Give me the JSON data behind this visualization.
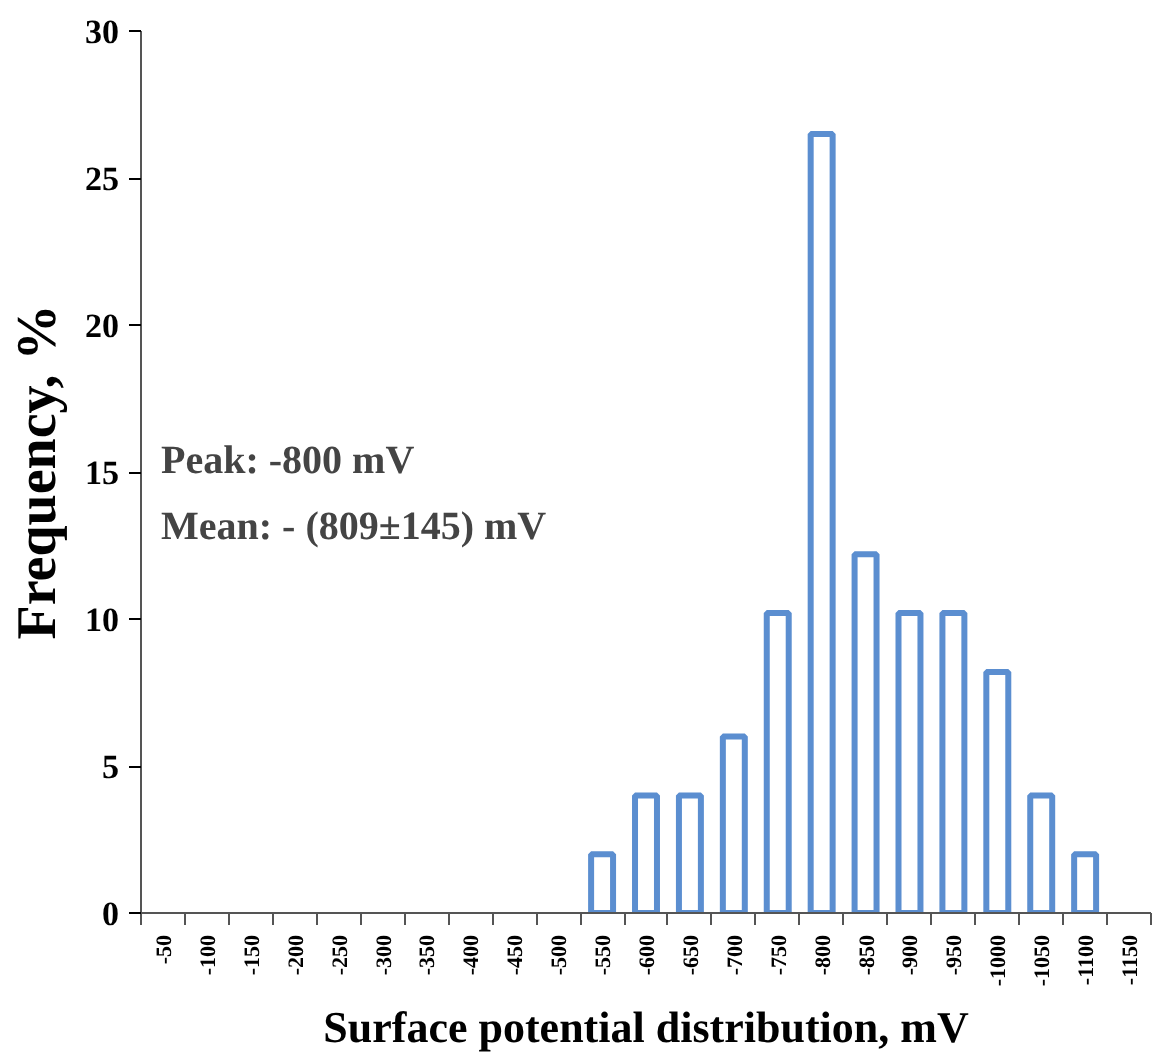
{
  "chart_data": {
    "type": "bar",
    "xlabel": "Surface potential distribution, mV",
    "ylabel": "Frequency, %",
    "categories": [
      "-50",
      "-100",
      "-150",
      "-200",
      "-250",
      "-300",
      "-350",
      "-400",
      "-450",
      "-500",
      "-550",
      "-600",
      "-650",
      "-700",
      "-750",
      "-800",
      "-850",
      "-900",
      "-950",
      "-1000",
      "-1050",
      "-1100",
      "-1150"
    ],
    "values": [
      null,
      null,
      null,
      null,
      null,
      null,
      null,
      null,
      null,
      null,
      2,
      4,
      4,
      6,
      10.2,
      26.5,
      12.2,
      10.2,
      10.2,
      8.2,
      4,
      2,
      null
    ],
    "color": "#5b8ed0",
    "ylim": [
      0,
      30
    ],
    "yticks": [
      0,
      5,
      10,
      15,
      20,
      25,
      30
    ],
    "grid": false,
    "annotations": [
      "Peak: -800 mV",
      "Mean: - (809±145) mV"
    ]
  }
}
